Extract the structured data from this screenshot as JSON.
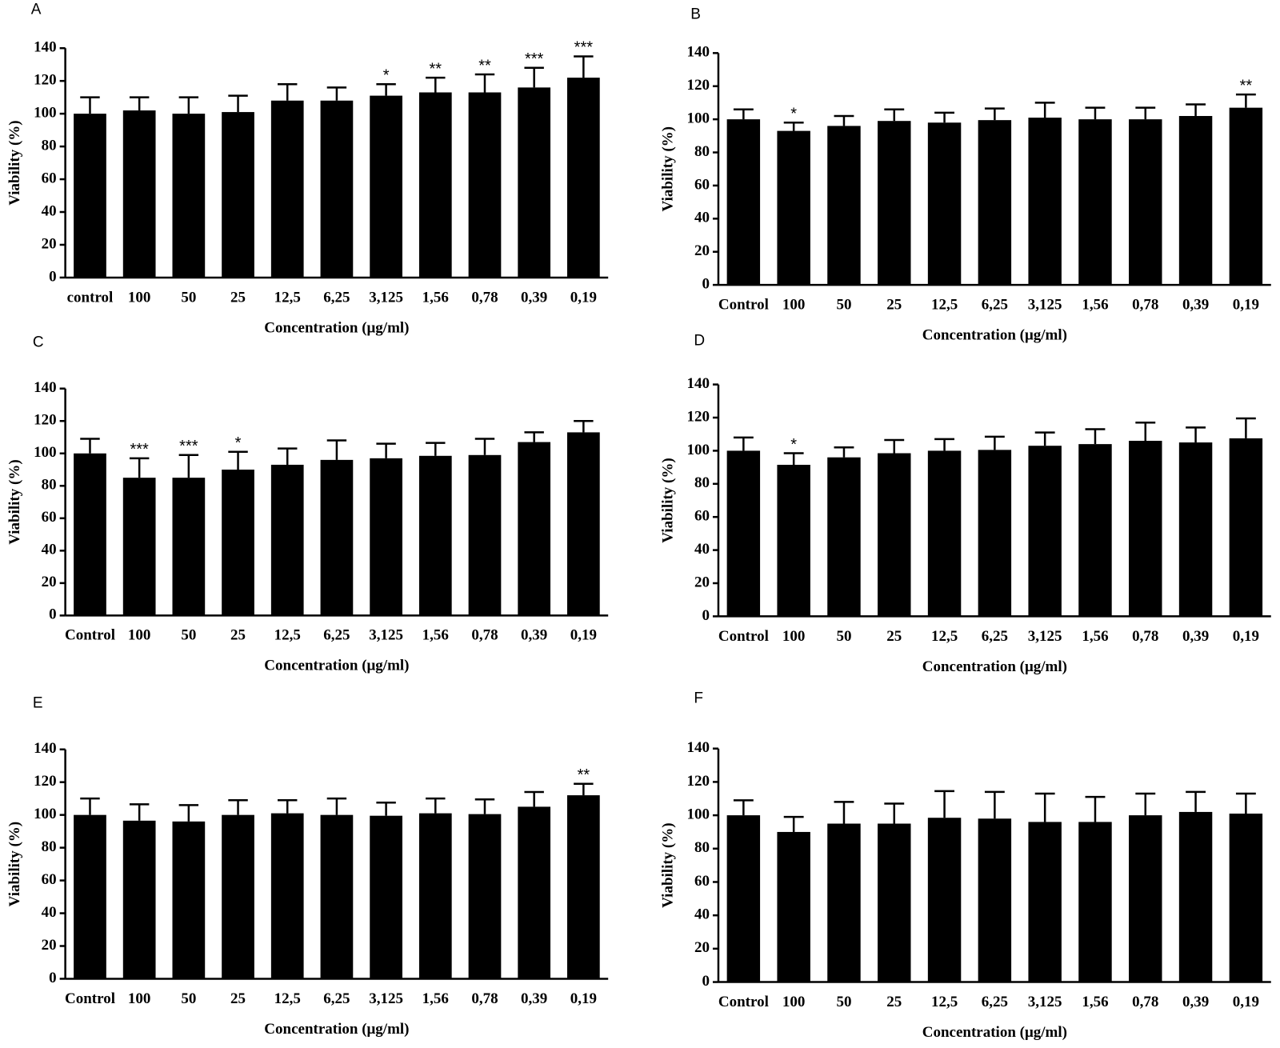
{
  "chart_data": [
    {
      "type": "bar",
      "panel": "A",
      "xlabel": "Concentration (μg/ml)",
      "ylabel": "Viability (%)",
      "categories": [
        "control",
        "100",
        "50",
        "25",
        "12,5",
        "6,25",
        "3,125",
        "1,56",
        "0,78",
        "0,39",
        "0,19"
      ],
      "values": [
        100,
        102,
        100,
        101,
        108,
        108,
        111,
        113,
        113,
        116,
        122
      ],
      "errors": [
        10,
        8,
        10,
        10,
        10,
        8,
        7,
        9,
        11,
        12,
        13
      ],
      "significance": [
        null,
        null,
        null,
        null,
        null,
        null,
        "*",
        "**",
        "**",
        "***",
        "***"
      ],
      "color": "#000000",
      "ylim": [
        0,
        140
      ],
      "yticks": [
        0,
        20,
        40,
        60,
        80,
        100,
        120,
        140
      ]
    },
    {
      "type": "bar",
      "panel": "B",
      "xlabel": "Concentration (μg/ml)",
      "ylabel": "Viability (%)",
      "categories": [
        "Control",
        "100",
        "50",
        "25",
        "12,5",
        "6,25",
        "3,125",
        "1,56",
        "0,78",
        "0,39",
        "0,19"
      ],
      "values": [
        100,
        93,
        96,
        99,
        98,
        99.5,
        101,
        100,
        100,
        102,
        107
      ],
      "errors": [
        6,
        5,
        6,
        7,
        6,
        7,
        9,
        7,
        7,
        7,
        8
      ],
      "significance": [
        null,
        "*",
        null,
        null,
        null,
        null,
        null,
        null,
        null,
        null,
        "**"
      ],
      "color": "#000000",
      "ylim": [
        0,
        140
      ],
      "yticks": [
        0,
        20,
        40,
        60,
        80,
        100,
        120,
        140
      ]
    },
    {
      "type": "bar",
      "panel": "C",
      "xlabel": "Concentration (μg/ml)",
      "ylabel": "Viability (%)",
      "categories": [
        "Control",
        "100",
        "50",
        "25",
        "12,5",
        "6,25",
        "3,125",
        "1,56",
        "0,78",
        "0,39",
        "0,19"
      ],
      "values": [
        100,
        85,
        85,
        90,
        93,
        96,
        97,
        98.5,
        99,
        107,
        113
      ],
      "errors": [
        9,
        12,
        14,
        11,
        10,
        12,
        9,
        8,
        10,
        6,
        7
      ],
      "significance": [
        null,
        "***",
        "***",
        "*",
        null,
        null,
        null,
        null,
        null,
        null,
        null
      ],
      "color": "#000000",
      "ylim": [
        0,
        140
      ],
      "yticks": [
        0,
        20,
        40,
        60,
        80,
        100,
        120,
        140
      ]
    },
    {
      "type": "bar",
      "panel": "D",
      "xlabel": "Concentration (μg/ml)",
      "ylabel": "Viability (%)",
      "categories": [
        "Control",
        "100",
        "50",
        "25",
        "12,5",
        "6,25",
        "3,125",
        "1,56",
        "0,78",
        "0,39",
        "0,19"
      ],
      "values": [
        100,
        91.5,
        96,
        98.5,
        100,
        100.5,
        103,
        104,
        106,
        105,
        107.5
      ],
      "errors": [
        8,
        7,
        6,
        8,
        7,
        8,
        8,
        9,
        11,
        9,
        12
      ],
      "significance": [
        null,
        "*",
        null,
        null,
        null,
        null,
        null,
        null,
        null,
        null,
        null
      ],
      "color": "#000000",
      "ylim": [
        0,
        140
      ],
      "yticks": [
        0,
        20,
        40,
        60,
        80,
        100,
        120,
        140
      ]
    },
    {
      "type": "bar",
      "panel": "E",
      "xlabel": "Concentration (μg/ml)",
      "ylabel": "Viability (%)",
      "categories": [
        "Control",
        "100",
        "50",
        "25",
        "12,5",
        "6,25",
        "3,125",
        "1,56",
        "0,78",
        "0,39",
        "0,19"
      ],
      "values": [
        100,
        96.5,
        96,
        100,
        101,
        100,
        99.5,
        101,
        100.5,
        105,
        112
      ],
      "errors": [
        10,
        10,
        10,
        9,
        8,
        10,
        8,
        9,
        9,
        9,
        7
      ],
      "significance": [
        null,
        null,
        null,
        null,
        null,
        null,
        null,
        null,
        null,
        null,
        "**"
      ],
      "color": "#000000",
      "ylim": [
        0,
        140
      ],
      "yticks": [
        0,
        20,
        40,
        60,
        80,
        100,
        120,
        140
      ]
    },
    {
      "type": "bar",
      "panel": "F",
      "xlabel": "Concentration (μg/ml)",
      "ylabel": "Viability (%)",
      "categories": [
        "Control",
        "100",
        "50",
        "25",
        "12,5",
        "6,25",
        "3,125",
        "1,56",
        "0,78",
        "0,39",
        "0,19"
      ],
      "values": [
        100,
        90,
        95,
        95,
        98.5,
        98,
        96,
        96,
        100,
        102,
        101
      ],
      "errors": [
        9,
        9,
        13,
        12,
        16,
        16,
        17,
        15,
        13,
        12,
        12
      ],
      "significance": [
        null,
        null,
        null,
        null,
        null,
        null,
        null,
        null,
        null,
        null,
        null
      ],
      "color": "#000000",
      "ylim": [
        0,
        140
      ],
      "yticks": [
        0,
        20,
        40,
        60,
        80,
        100,
        120,
        140
      ]
    }
  ]
}
